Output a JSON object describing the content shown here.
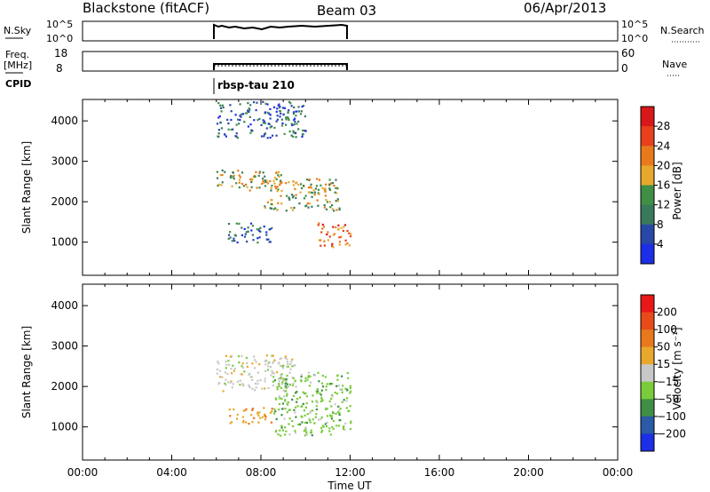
{
  "header": {
    "station": "Blackstone (fitACF)",
    "beam": "Beam 03",
    "date": "06/Apr/2013"
  },
  "top_panels": {
    "nsky_label": "N.Sky",
    "nsky_ticks": [
      "10^5",
      "10^0"
    ],
    "nsearch_label": "N.Search",
    "nsearch_ticks": [
      "10^5",
      "10^0"
    ],
    "freq_label": "Freq.",
    "freq_unit": "[MHz]",
    "freq_ticks": [
      "18",
      "8"
    ],
    "nave_label": "Nave",
    "nave_ticks": [
      "60",
      "0"
    ],
    "cpid_label": "CPID",
    "cpid_value": "rbsp-tau 210"
  },
  "chart_data": [
    {
      "type": "heatmap",
      "title": "",
      "xlabel": "",
      "ylabel": "Slant Range [km]",
      "x": [
        "00:00",
        "04:00",
        "08:00",
        "12:00",
        "16:00",
        "20:00",
        "00:00"
      ],
      "yticks": [
        1000,
        2000,
        3000,
        4000
      ],
      "ylim": [
        180,
        4530
      ],
      "data_xlim_hours": [
        6.0,
        12.0
      ],
      "colorbar": {
        "label": "Power [dB]",
        "ticks": [
          "4",
          "8",
          "12",
          "16",
          "20",
          "24",
          "28"
        ],
        "colors": [
          "#1c2ee6",
          "#2848a8",
          "#3a7a5c",
          "#3f8f45",
          "#e8a82c",
          "#e87a1c",
          "#e8401a",
          "#d81818"
        ]
      },
      "bands": [
        {
          "t0": 6.0,
          "t1": 9.0,
          "r0": 2300,
          "r1": 2800,
          "level": "mid"
        },
        {
          "t0": 8.0,
          "t1": 11.5,
          "r0": 1800,
          "r1": 2600,
          "level": "mid"
        },
        {
          "t0": 10.5,
          "t1": 12.0,
          "r0": 900,
          "r1": 1500,
          "level": "high"
        },
        {
          "t0": 6.5,
          "t1": 8.5,
          "r0": 1000,
          "r1": 1500,
          "level": "low"
        },
        {
          "t0": 6.0,
          "t1": 10.0,
          "r0": 3600,
          "r1": 4500,
          "level": "low"
        }
      ]
    },
    {
      "type": "heatmap",
      "title": "",
      "xlabel": "Time UT",
      "ylabel": "Slant Range [km]",
      "x": [
        "00:00",
        "04:00",
        "08:00",
        "12:00",
        "16:00",
        "20:00",
        "00:00"
      ],
      "yticks": [
        1000,
        2000,
        3000,
        4000
      ],
      "ylim": [
        180,
        4530
      ],
      "data_xlim_hours": [
        6.0,
        12.0
      ],
      "colorbar": {
        "label": "Velocity [m s⁻¹]",
        "ticks": [
          "200",
          "100",
          "50",
          "15",
          "-15",
          "-50",
          "-100",
          "-200"
        ],
        "colors": [
          "#1c2ee6",
          "#2a5aa8",
          "#3f8f45",
          "#7acc3a",
          "#c8c8c8",
          "#e8a82c",
          "#e8781c",
          "#e84a1a",
          "#e81818"
        ]
      },
      "bands": [
        {
          "t0": 6.0,
          "t1": 9.5,
          "r0": 1900,
          "r1": 2800,
          "level": "zero"
        },
        {
          "t0": 8.5,
          "t1": 12.0,
          "r0": 800,
          "r1": 2400,
          "level": "pos"
        },
        {
          "t0": 6.5,
          "t1": 8.5,
          "r0": 1100,
          "r1": 1500,
          "level": "neg"
        }
      ]
    }
  ]
}
